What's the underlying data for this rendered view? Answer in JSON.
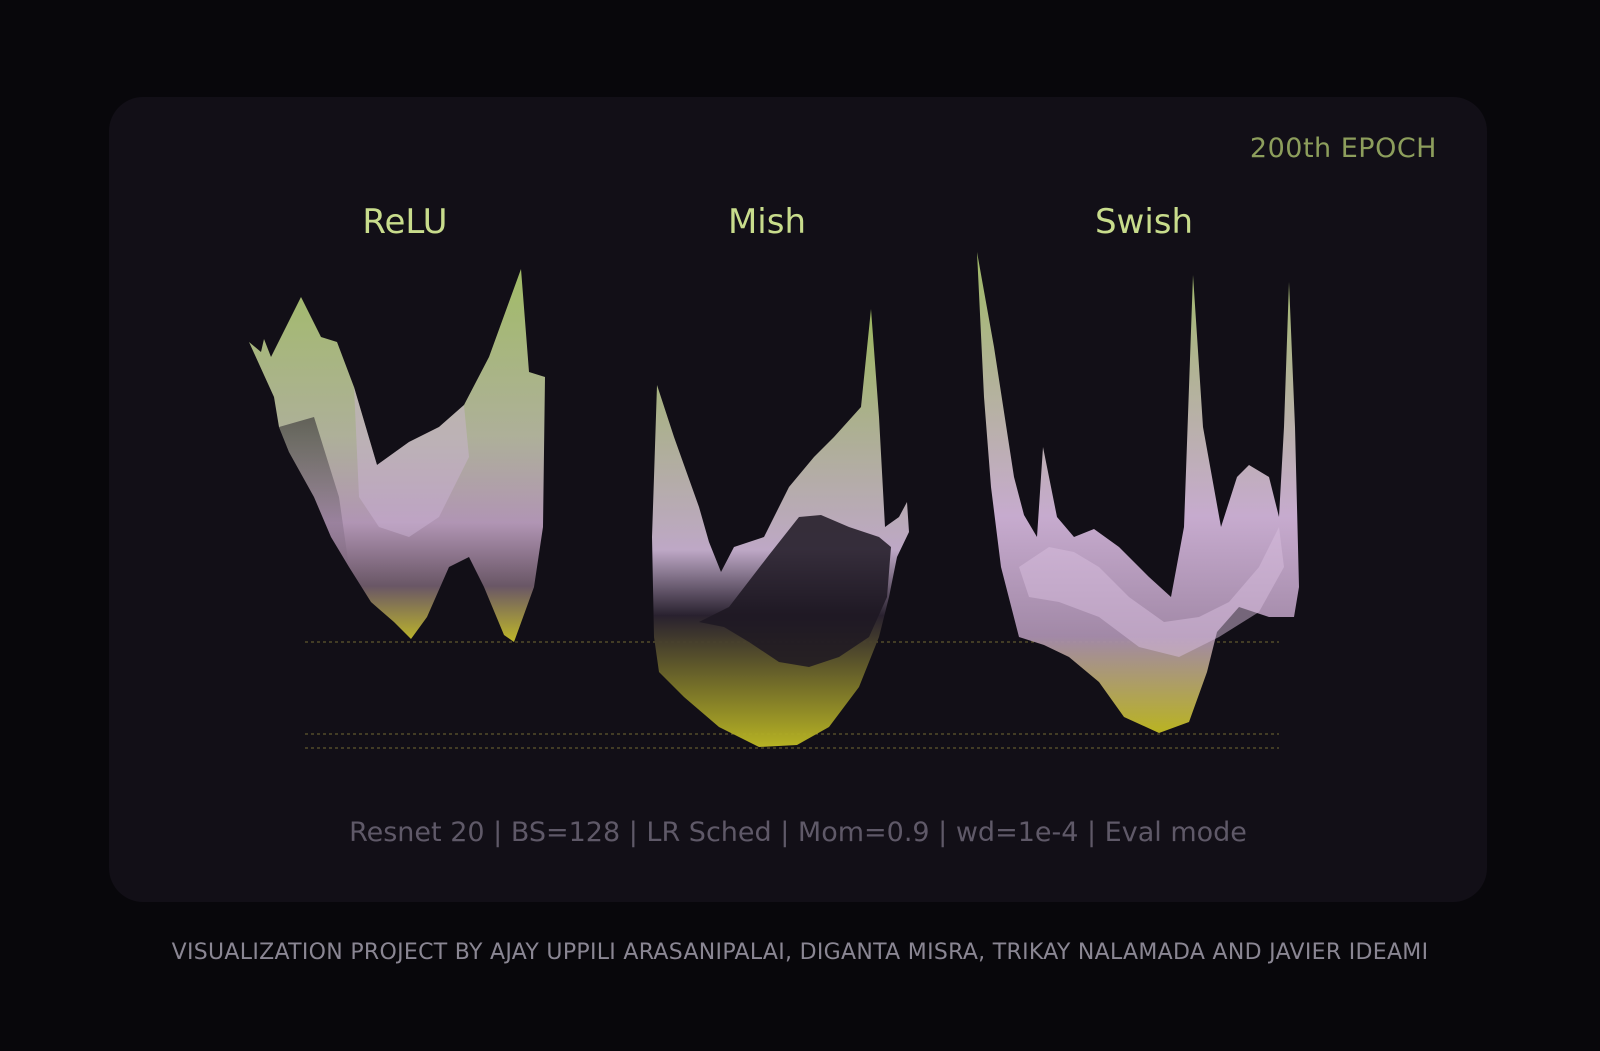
{
  "header": {
    "epoch_label": "200th EPOCH"
  },
  "panels": [
    {
      "title": "ReLU"
    },
    {
      "title": "Mish"
    },
    {
      "title": "Swish"
    }
  ],
  "caption": "Resnet 20 | BS=128 | LR Sched | Mom=0.9 | wd=1e-4 | Eval mode",
  "credits": "VISUALIZATION PROJECT BY AJAY UPPILI ARASANIPALAI, DIGANTA MISRA, TRIKAY NALAMADA AND JAVIER IDEAMI",
  "colors": {
    "background": "#08070b",
    "card": "#120f17",
    "surface_top": "#a8c46a",
    "surface_mid": "#cfaed6",
    "surface_bottom": "#c9c22a",
    "guide_line": "#8a7f3a"
  }
}
